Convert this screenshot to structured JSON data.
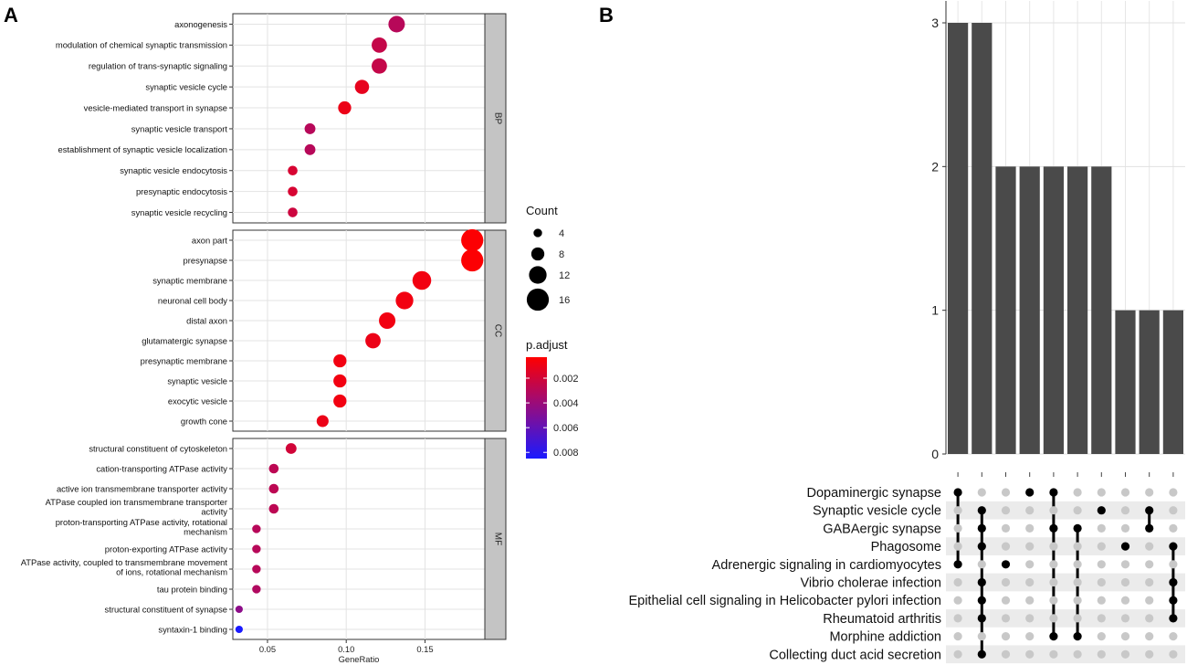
{
  "panel_labels": {
    "a": "A",
    "b": "B"
  },
  "colors": {
    "high": "#ff0000",
    "mid": "#9c0b7a",
    "low": "#1a1aff",
    "bar": "#4a4a4a",
    "dot_on": "#000000",
    "dot_off": "#c8c8c8",
    "strip": "#c4c4c4",
    "band": "#ebebeb"
  },
  "chart_data": [
    {
      "type": "scatter",
      "title": "",
      "xlabel": "GeneRatio",
      "xlim": [
        0.028,
        0.188
      ],
      "xticks": [
        0.05,
        0.1,
        0.15
      ],
      "xtick_labels": [
        "0.05",
        "0.10",
        "0.15"
      ],
      "size_legend": {
        "title": "Count",
        "values": [
          4,
          8,
          12,
          16
        ]
      },
      "color_legend": {
        "title": "p.adjust",
        "ticks": [
          0.002,
          0.004,
          0.006,
          0.008
        ],
        "tick_labels": [
          "0.002",
          "0.004",
          "0.006",
          "0.008"
        ],
        "range": [
          0.0003,
          0.0085
        ]
      },
      "facets": [
        {
          "name": "BP",
          "terms": [
            {
              "label": "axonogenesis",
              "gene_ratio": 0.132,
              "count": 11,
              "p_adjust": 0.003
            },
            {
              "label": "modulation of chemical synaptic transmission",
              "gene_ratio": 0.121,
              "count": 10,
              "p_adjust": 0.0025
            },
            {
              "label": "regulation of trans-synaptic signaling",
              "gene_ratio": 0.121,
              "count": 10,
              "p_adjust": 0.0025
            },
            {
              "label": "synaptic vesicle cycle",
              "gene_ratio": 0.11,
              "count": 9,
              "p_adjust": 0.0012
            },
            {
              "label": "vesicle-mediated transport in synapse",
              "gene_ratio": 0.099,
              "count": 8,
              "p_adjust": 0.001
            },
            {
              "label": "synaptic vesicle transport",
              "gene_ratio": 0.077,
              "count": 6,
              "p_adjust": 0.003
            },
            {
              "label": "establishment of synaptic vesicle localization",
              "gene_ratio": 0.077,
              "count": 6,
              "p_adjust": 0.003
            },
            {
              "label": "synaptic vesicle endocytosis",
              "gene_ratio": 0.066,
              "count": 5,
              "p_adjust": 0.0018
            },
            {
              "label": "presynaptic endocytosis",
              "gene_ratio": 0.066,
              "count": 5,
              "p_adjust": 0.0018
            },
            {
              "label": "synaptic vesicle recycling",
              "gene_ratio": 0.066,
              "count": 5,
              "p_adjust": 0.0022
            }
          ]
        },
        {
          "name": "CC",
          "terms": [
            {
              "label": "axon part",
              "gene_ratio": 0.18,
              "count": 16,
              "p_adjust": 0.0004
            },
            {
              "label": "presynapse",
              "gene_ratio": 0.18,
              "count": 16,
              "p_adjust": 0.0004
            },
            {
              "label": "synaptic membrane",
              "gene_ratio": 0.148,
              "count": 13,
              "p_adjust": 0.0008
            },
            {
              "label": "neuronal cell body",
              "gene_ratio": 0.137,
              "count": 12,
              "p_adjust": 0.0008
            },
            {
              "label": "distal axon",
              "gene_ratio": 0.126,
              "count": 11,
              "p_adjust": 0.0008
            },
            {
              "label": "glutamatergic synapse",
              "gene_ratio": 0.117,
              "count": 10,
              "p_adjust": 0.001
            },
            {
              "label": "presynaptic membrane",
              "gene_ratio": 0.096,
              "count": 8,
              "p_adjust": 0.0008
            },
            {
              "label": "synaptic vesicle",
              "gene_ratio": 0.096,
              "count": 8,
              "p_adjust": 0.0008
            },
            {
              "label": "exocytic vesicle",
              "gene_ratio": 0.096,
              "count": 8,
              "p_adjust": 0.0008
            },
            {
              "label": "growth cone",
              "gene_ratio": 0.085,
              "count": 7,
              "p_adjust": 0.001
            }
          ]
        },
        {
          "name": "MF",
          "terms": [
            {
              "label": "structural constituent of cytoskeleton",
              "gene_ratio": 0.065,
              "count": 6,
              "p_adjust": 0.002
            },
            {
              "label": "cation-transporting ATPase activity",
              "gene_ratio": 0.054,
              "count": 5,
              "p_adjust": 0.0028
            },
            {
              "label": "active ion transmembrane transporter activity",
              "gene_ratio": 0.054,
              "count": 5,
              "p_adjust": 0.0028
            },
            {
              "label": "ATPase coupled ion transmembrane transporter activity",
              "gene_ratio": 0.054,
              "count": 5,
              "p_adjust": 0.0028
            },
            {
              "label": "proton-transporting ATPase activity, rotational mechanism",
              "gene_ratio": 0.043,
              "count": 4,
              "p_adjust": 0.003
            },
            {
              "label": "proton-exporting ATPase activity",
              "gene_ratio": 0.043,
              "count": 4,
              "p_adjust": 0.003
            },
            {
              "label": "ATPase activity, coupled to transmembrane movement of ions, rotational mechanism",
              "gene_ratio": 0.043,
              "count": 4,
              "p_adjust": 0.003
            },
            {
              "label": "tau protein binding",
              "gene_ratio": 0.043,
              "count": 4,
              "p_adjust": 0.0032
            },
            {
              "label": "structural constituent of synapse",
              "gene_ratio": 0.032,
              "count": 3,
              "p_adjust": 0.0045
            },
            {
              "label": "syntaxin-1 binding",
              "gene_ratio": 0.032,
              "count": 3,
              "p_adjust": 0.0085
            }
          ]
        }
      ]
    },
    {
      "type": "bar",
      "title": "",
      "xlabel": "",
      "ylabel": "",
      "ylim": [
        0,
        3
      ],
      "yticks": [
        0,
        1,
        2,
        3
      ],
      "values": [
        3,
        3,
        2,
        2,
        2,
        2,
        2,
        1,
        1,
        1
      ],
      "sets": [
        "Dopaminergic synapse",
        "Synaptic vesicle cycle",
        "GABAergic synapse",
        "Phagosome",
        "Adrenergic signaling in cardiomyocytes",
        "Vibrio cholerae infection",
        "Epithelial cell signaling in Helicobacter pylori infection",
        "Rheumatoid arthritis",
        "Morphine addiction",
        "Collecting duct acid secretion"
      ],
      "intersections": [
        [
          0,
          4
        ],
        [
          1,
          2,
          3,
          5,
          6,
          7,
          9
        ],
        [
          4
        ],
        [
          0
        ],
        [
          0,
          2,
          8
        ],
        [
          2,
          8
        ],
        [
          1
        ],
        [
          3
        ],
        [
          1,
          2
        ],
        [
          3,
          5,
          6,
          7
        ]
      ]
    }
  ]
}
